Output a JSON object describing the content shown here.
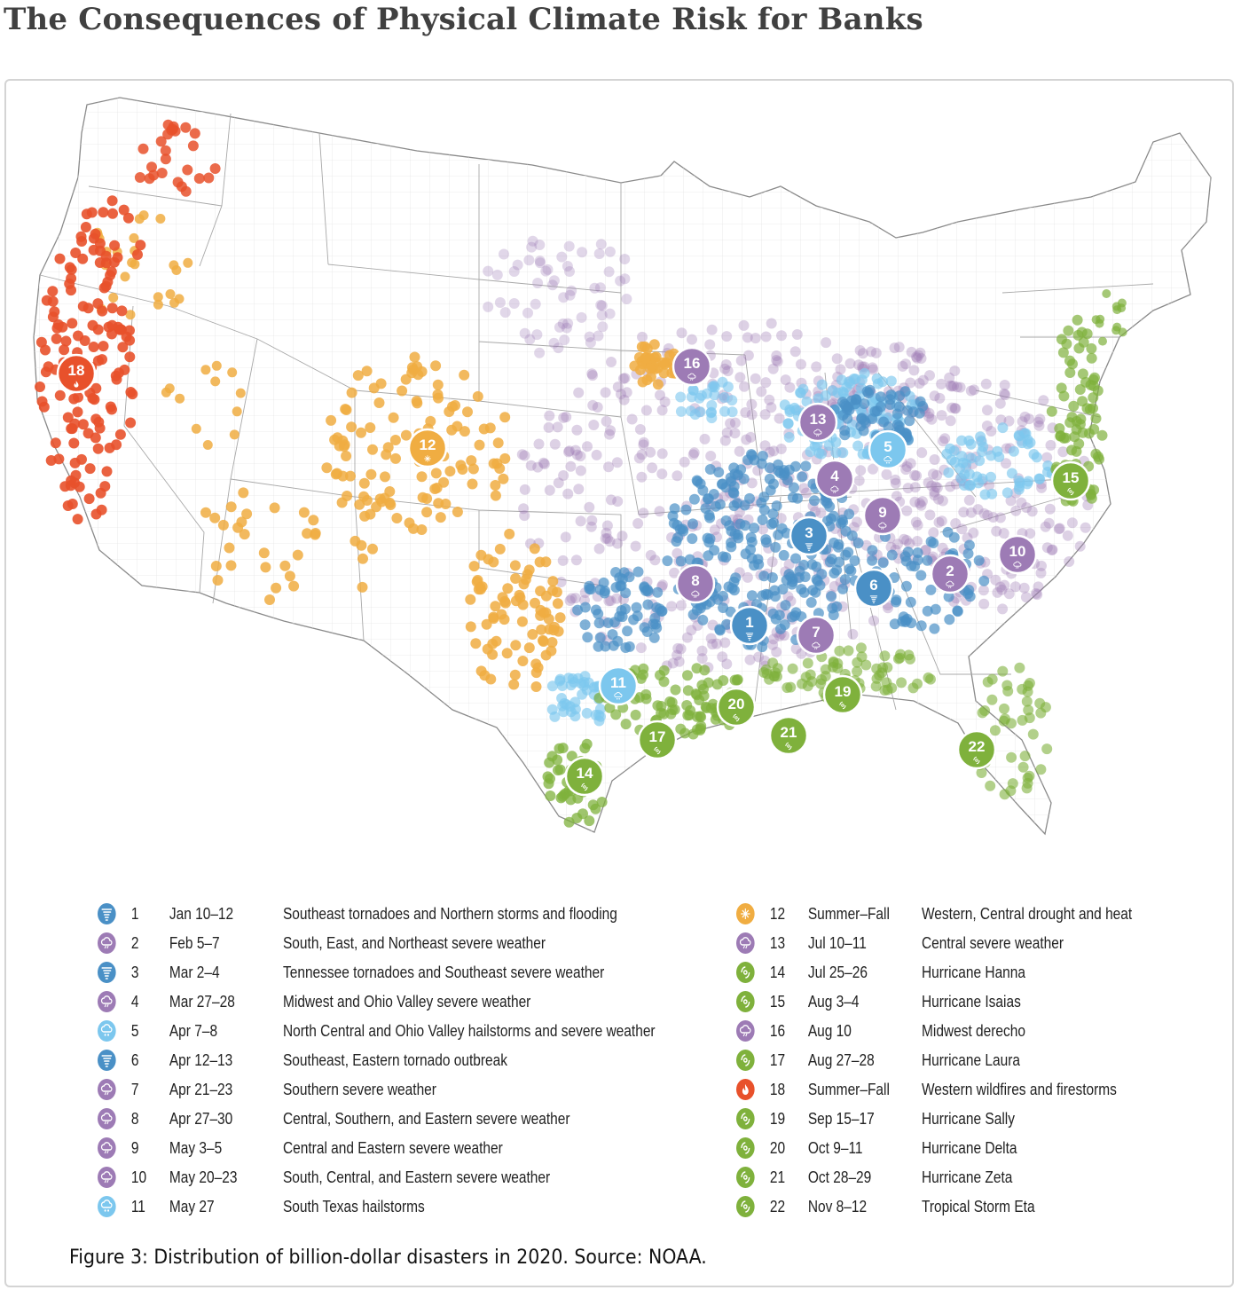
{
  "title": "The Consequences of Physical Climate Risk for Banks",
  "caption": "Figure 3: Distribution of billion-dollar disasters in 2020. Source: NOAA.",
  "colors": {
    "tornado": "#4a90c6",
    "severe_weather": "#9d7bb5",
    "hail": "#7cc7ee",
    "drought": "#f0ad42",
    "wildfire": "#e8512b",
    "tropical_cyclone": "#7fb13c"
  },
  "icons": {
    "tornado": "tornado-icon",
    "severe_weather": "storm-cloud-icon",
    "hail": "hail-icon",
    "drought": "drought-icon",
    "wildfire": "fire-icon",
    "tropical_cyclone": "hurricane-icon"
  },
  "events": [
    {
      "num": "1",
      "date": "Jan 10–12",
      "desc": "Southeast tornadoes and Northern storms and flooding",
      "type": "tornado"
    },
    {
      "num": "2",
      "date": "Feb 5–7",
      "desc": "South, East, and Northeast severe weather",
      "type": "severe_weather"
    },
    {
      "num": "3",
      "date": "Mar 2–4",
      "desc": "Tennessee tornadoes and Southeast severe weather",
      "type": "tornado"
    },
    {
      "num": "4",
      "date": "Mar 27–28",
      "desc": "Midwest and Ohio Valley severe weather",
      "type": "severe_weather"
    },
    {
      "num": "5",
      "date": "Apr 7–8",
      "desc": "North Central and Ohio Valley hailstorms and severe weather",
      "type": "hail"
    },
    {
      "num": "6",
      "date": "Apr 12–13",
      "desc": "Southeast, Eastern tornado outbreak",
      "type": "tornado"
    },
    {
      "num": "7",
      "date": "Apr 21–23",
      "desc": "Southern severe weather",
      "type": "severe_weather"
    },
    {
      "num": "8",
      "date": "Apr 27–30",
      "desc": "Central, Southern, and Eastern severe weather",
      "type": "severe_weather"
    },
    {
      "num": "9",
      "date": "May 3–5",
      "desc": "Central and Eastern severe weather",
      "type": "severe_weather"
    },
    {
      "num": "10",
      "date": "May 20–23",
      "desc": "South, Central, and Eastern severe weather",
      "type": "severe_weather"
    },
    {
      "num": "11",
      "date": "May 27",
      "desc": "South Texas hailstorms",
      "type": "hail"
    },
    {
      "num": "12",
      "date": "Summer–Fall",
      "desc": "Western, Central drought and heat",
      "type": "drought"
    },
    {
      "num": "13",
      "date": "Jul 10–11",
      "desc": "Central severe weather",
      "type": "severe_weather"
    },
    {
      "num": "14",
      "date": "Jul 25–26",
      "desc": "Hurricane Hanna",
      "type": "tropical_cyclone"
    },
    {
      "num": "15",
      "date": "Aug 3–4",
      "desc": "Hurricane Isaias",
      "type": "tropical_cyclone"
    },
    {
      "num": "16",
      "date": "Aug 10",
      "desc": "Midwest derecho",
      "type": "severe_weather"
    },
    {
      "num": "17",
      "date": "Aug 27–28",
      "desc": "Hurricane Laura",
      "type": "tropical_cyclone"
    },
    {
      "num": "18",
      "date": "Summer–Fall",
      "desc": "Western wildfires and firestorms",
      "type": "wildfire"
    },
    {
      "num": "19",
      "date": "Sep 15–17",
      "desc": "Hurricane Sally",
      "type": "tropical_cyclone"
    },
    {
      "num": "20",
      "date": "Oct 9–11",
      "desc": "Hurricane Delta",
      "type": "tropical_cyclone"
    },
    {
      "num": "21",
      "date": "Oct 28–29",
      "desc": "Hurricane Zeta",
      "type": "tropical_cyclone"
    },
    {
      "num": "22",
      "date": "Nov 8–12",
      "desc": "Tropical Storm Eta",
      "type": "tropical_cyclone"
    }
  ]
}
